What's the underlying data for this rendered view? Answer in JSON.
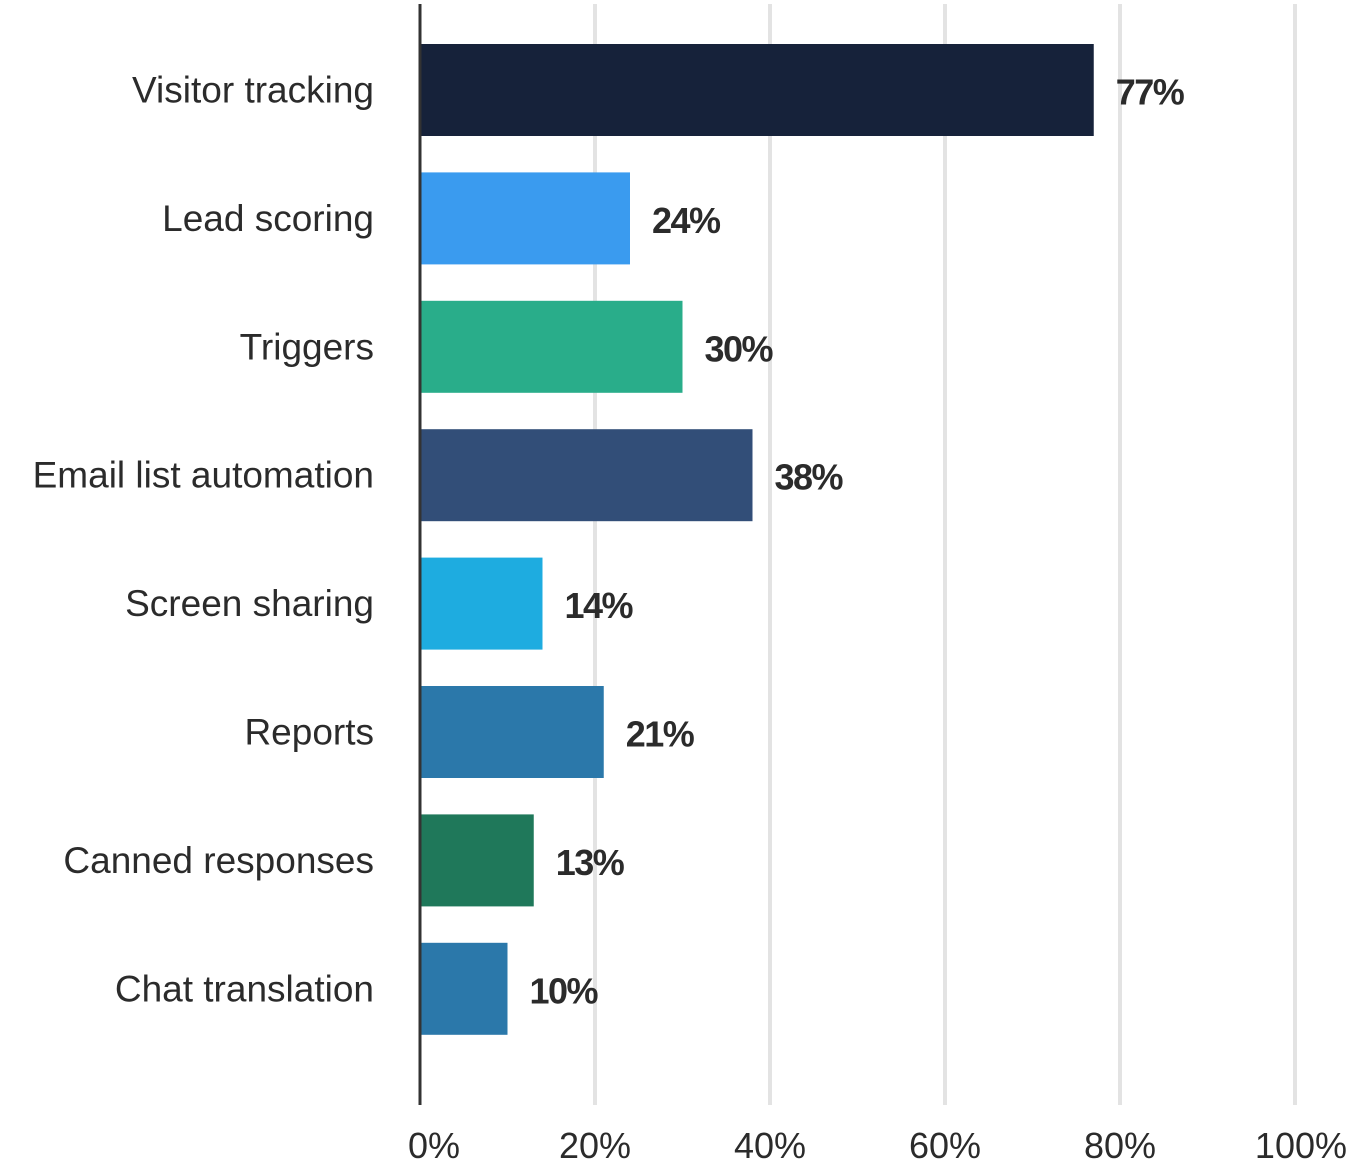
{
  "chart_data": {
    "type": "bar",
    "orientation": "horizontal",
    "title": "",
    "xlabel": "",
    "ylabel": "",
    "xlim": [
      0,
      100
    ],
    "grid": true,
    "legend": "none",
    "ticks": [
      "0%",
      "20%",
      "40%",
      "60%",
      "80%",
      "100%"
    ],
    "tick_values": [
      0,
      20,
      40,
      60,
      80,
      100
    ],
    "categories": [
      "Visitor tracking",
      "Lead scoring",
      "Triggers",
      "Email list automation",
      "Screen sharing",
      "Reports",
      "Canned responses",
      "Chat translation"
    ],
    "values": [
      77,
      24,
      30,
      38,
      14,
      21,
      13,
      10
    ],
    "value_labels": [
      "77%",
      "24%",
      "30%",
      "38%",
      "14%",
      "21%",
      "13%",
      "10%"
    ],
    "colors": [
      "#16223a",
      "#3a9bef",
      "#29ad8a",
      "#324e78",
      "#1eace0",
      "#2b78aa",
      "#1f785a",
      "#2b78aa"
    ]
  }
}
